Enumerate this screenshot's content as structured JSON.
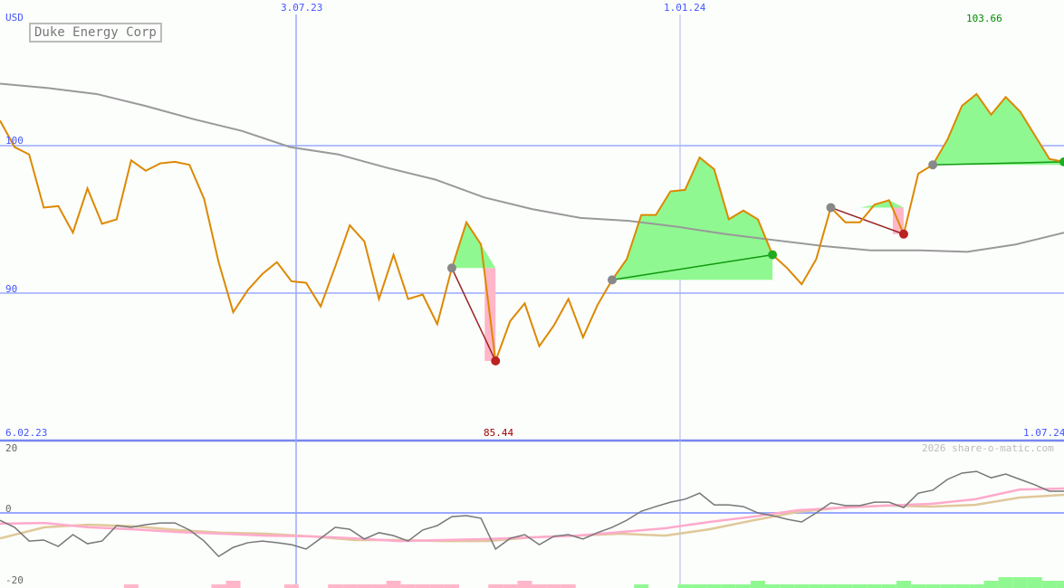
{
  "chart_data": [
    {
      "type": "line",
      "title": "Duke Energy Corp",
      "ylabel": "USD",
      "ylim": [
        80,
        105
      ],
      "yticks": [
        "100",
        "90"
      ],
      "xticks": [
        "3.07.23",
        "1.01.24"
      ],
      "start_label": "6.02.23",
      "end_label": "1.07.24",
      "max_label": "103.66",
      "min_label": "85.44",
      "series": [
        {
          "values": [
            101.7,
            99.9,
            99.4,
            95.8,
            95.9,
            94.1,
            97.1,
            94.7,
            95.0,
            99.0,
            98.3,
            98.8,
            98.9,
            98.7,
            96.4,
            92.1,
            88.7,
            90.2,
            91.3,
            92.1,
            90.8,
            90.7,
            89.1,
            91.8,
            94.6,
            93.5,
            89.6,
            92.6,
            89.6,
            89.9,
            87.9,
            91.7,
            94.8,
            93.3,
            85.4,
            88.1,
            89.3,
            86.4,
            87.8,
            89.6,
            87.0,
            89.2,
            90.9,
            92.3,
            95.3,
            95.3,
            96.9,
            97.0,
            99.2,
            98.4,
            95.0,
            95.6,
            95.0,
            92.6,
            91.7,
            90.6,
            92.3,
            95.8,
            94.8,
            94.8,
            96.0,
            96.3,
            94.0,
            98.1,
            98.7,
            100.4,
            102.7,
            103.5,
            102.1,
            103.3,
            102.3,
            100.7,
            99.1,
            98.9
          ],
          "color": "#dd8800"
        },
        {
          "values": [
            104.2,
            103.9,
            103.5,
            102.7,
            101.8,
            101.0,
            99.9,
            99.4,
            98.5,
            97.7,
            96.5,
            95.7,
            95.1,
            94.9,
            94.5,
            94.0,
            93.6,
            93.2,
            92.9,
            92.9,
            92.8,
            93.3,
            94.1
          ],
          "color": "#999999"
        }
      ],
      "trades": [
        {
          "entry": 31,
          "exit": 34,
          "result": "loss"
        },
        {
          "entry": 42,
          "exit": 53,
          "result": "gain"
        },
        {
          "entry": 57,
          "exit": 62,
          "result": "loss"
        },
        {
          "entry": 64,
          "exit": 73,
          "result": "gain"
        }
      ]
    },
    {
      "type": "line",
      "ylim": [
        -20,
        20
      ],
      "yticks": [
        "20",
        "0",
        "-20"
      ],
      "series": [
        {
          "values": [
            -2.2,
            -4.3,
            -8.4,
            -8.1,
            -10,
            -6.5,
            -9.2,
            -8.4,
            -3.8,
            -4.3,
            -3.5,
            -3,
            -3,
            -5.1,
            -8.4,
            -13,
            -10.3,
            -8.9,
            -8.4,
            -8.9,
            -9.5,
            -10.8,
            -7.6,
            -4.3,
            -4.9,
            -7.8,
            -5.9,
            -6.8,
            -8.4,
            -5.1,
            -3.8,
            -1.1,
            -0.8,
            -1.6,
            -10.8,
            -7.6,
            -6.5,
            -9.5,
            -7,
            -6.5,
            -7.8,
            -5.9,
            -4.3,
            -2.2,
            0.5,
            1.9,
            3.2,
            4.1,
            5.9,
            2.4,
            2.4,
            1.9,
            0,
            -0.8,
            -1.9,
            -2.7,
            0,
            3,
            2.2,
            2.2,
            3.2,
            3.2,
            1.6,
            5.9,
            6.8,
            10,
            11.9,
            12.4,
            10.5,
            11.6,
            10,
            8.4,
            6.5,
            6.5
          ],
          "color": "#777777"
        },
        {
          "values": [
            -3.2,
            -3,
            -4.3,
            -4.9,
            -5.7,
            -6.2,
            -6.8,
            -7,
            -7.6,
            -8.4,
            -8.1,
            -7.8,
            -7.3,
            -6.8,
            -5.7,
            -4.6,
            -2.7,
            -1.1,
            0.8,
            1.6,
            2.2,
            2.7,
            4.1,
            7,
            7.3
          ],
          "color": "#ffaacc"
        },
        {
          "values": [
            -7.6,
            -4.3,
            -3.5,
            -4,
            -5.1,
            -5.9,
            -6.2,
            -7,
            -8.1,
            -8.1,
            -8.4,
            -8.4,
            -7.3,
            -6.8,
            -6.2,
            -6.8,
            -4.9,
            -2.2,
            0.3,
            1.6,
            2.2,
            1.9,
            2.4,
            4.6,
            5.4
          ],
          "color": "#e0c89a"
        }
      ],
      "histogram": [
        0,
        0,
        0,
        0,
        0,
        0,
        0,
        0,
        0,
        -1,
        0,
        0,
        0,
        0,
        0,
        -1,
        -2,
        0,
        0,
        0,
        -1,
        0,
        0,
        -1,
        -1,
        -1,
        -1,
        -2,
        -1,
        -1,
        -1,
        -1,
        0,
        0,
        -1,
        -1,
        -2,
        -1,
        -1,
        -1,
        0,
        0,
        0,
        0,
        1,
        0,
        0,
        1,
        1,
        1,
        1,
        1,
        2,
        1,
        1,
        1,
        1,
        1,
        1,
        1,
        1,
        1,
        2,
        1,
        1,
        1,
        1,
        1,
        2,
        3,
        3,
        3,
        2,
        2
      ]
    }
  ],
  "copyright": "2026 share-o-matic.com"
}
